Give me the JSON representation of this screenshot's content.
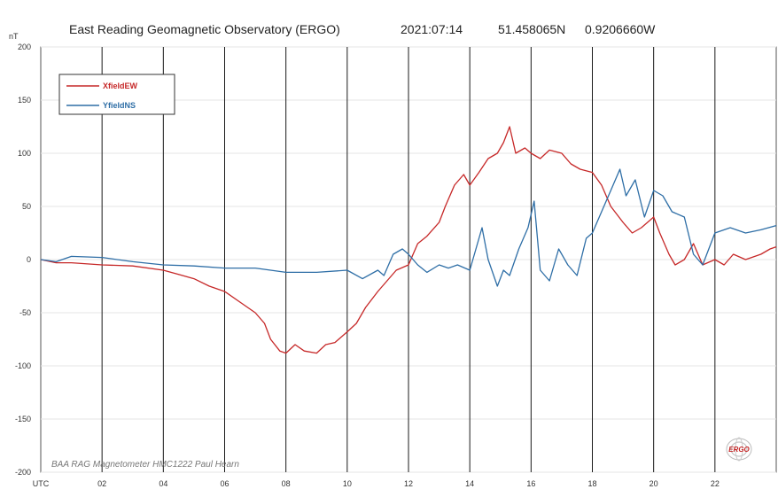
{
  "header": {
    "title": "East Reading Geomagnetic Observatory  (ERGO)",
    "date": "2021:07:14",
    "latitude": "51.458065N",
    "longitude": "0.9206660W"
  },
  "credit": "BAA RAG Magnetometer HMC1222   Paul Hearn",
  "logo_text": "ERGO",
  "colors": {
    "xfield": "#c62828",
    "yfield": "#2e6ea6",
    "grid": "#000000",
    "frame": "#555555"
  },
  "chart_data": {
    "type": "line",
    "ylabel": "nT",
    "xlabel": "",
    "ylim": [
      -200,
      200
    ],
    "xlim": [
      0,
      24
    ],
    "y_ticks": [
      200,
      150,
      100,
      50,
      0,
      -50,
      -100,
      -150,
      -200
    ],
    "x_ticks": [
      {
        "x": 0,
        "label": "UTC"
      },
      {
        "x": 2,
        "label": "02"
      },
      {
        "x": 4,
        "label": "04"
      },
      {
        "x": 6,
        "label": "06"
      },
      {
        "x": 8,
        "label": "08"
      },
      {
        "x": 10,
        "label": "10"
      },
      {
        "x": 12,
        "label": "12"
      },
      {
        "x": 14,
        "label": "14"
      },
      {
        "x": 16,
        "label": "16"
      },
      {
        "x": 18,
        "label": "18"
      },
      {
        "x": 20,
        "label": "20"
      },
      {
        "x": 22,
        "label": "22"
      }
    ],
    "vertical_grid": [
      2,
      4,
      6,
      8,
      10,
      12,
      14,
      16,
      18,
      20,
      22
    ],
    "legend_position": "top-left",
    "series": [
      {
        "name": "XfieldEW",
        "color": "#c62828",
        "points": [
          [
            0,
            0
          ],
          [
            0.5,
            -3
          ],
          [
            1,
            -3
          ],
          [
            2,
            -5
          ],
          [
            3,
            -6
          ],
          [
            4,
            -10
          ],
          [
            4.5,
            -14
          ],
          [
            5,
            -18
          ],
          [
            5.5,
            -25
          ],
          [
            6,
            -30
          ],
          [
            6.5,
            -40
          ],
          [
            7,
            -50
          ],
          [
            7.3,
            -60
          ],
          [
            7.5,
            -75
          ],
          [
            7.8,
            -86
          ],
          [
            8,
            -88
          ],
          [
            8.3,
            -80
          ],
          [
            8.6,
            -86
          ],
          [
            9,
            -88
          ],
          [
            9.3,
            -80
          ],
          [
            9.6,
            -78
          ],
          [
            10,
            -68
          ],
          [
            10.3,
            -60
          ],
          [
            10.6,
            -45
          ],
          [
            11,
            -30
          ],
          [
            11.3,
            -20
          ],
          [
            11.6,
            -10
          ],
          [
            12,
            -5
          ],
          [
            12.3,
            15
          ],
          [
            12.6,
            22
          ],
          [
            13,
            35
          ],
          [
            13.2,
            50
          ],
          [
            13.5,
            70
          ],
          [
            13.8,
            80
          ],
          [
            14,
            70
          ],
          [
            14.3,
            82
          ],
          [
            14.6,
            95
          ],
          [
            14.9,
            100
          ],
          [
            15.1,
            110
          ],
          [
            15.3,
            125
          ],
          [
            15.5,
            100
          ],
          [
            15.8,
            105
          ],
          [
            16,
            100
          ],
          [
            16.3,
            95
          ],
          [
            16.6,
            103
          ],
          [
            17,
            100
          ],
          [
            17.3,
            90
          ],
          [
            17.6,
            85
          ],
          [
            18,
            82
          ],
          [
            18.3,
            70
          ],
          [
            18.6,
            50
          ],
          [
            19,
            35
          ],
          [
            19.3,
            25
          ],
          [
            19.6,
            30
          ],
          [
            20,
            40
          ],
          [
            20.2,
            25
          ],
          [
            20.5,
            5
          ],
          [
            20.7,
            -5
          ],
          [
            21,
            0
          ],
          [
            21.3,
            15
          ],
          [
            21.6,
            -5
          ],
          [
            22,
            0
          ],
          [
            22.3,
            -5
          ],
          [
            22.6,
            5
          ],
          [
            23,
            0
          ],
          [
            23.5,
            5
          ],
          [
            23.8,
            10
          ],
          [
            24,
            12
          ]
        ]
      },
      {
        "name": "YfieldNS",
        "color": "#2e6ea6",
        "points": [
          [
            0,
            0
          ],
          [
            0.5,
            -2
          ],
          [
            1,
            3
          ],
          [
            2,
            2
          ],
          [
            3,
            -2
          ],
          [
            4,
            -5
          ],
          [
            5,
            -6
          ],
          [
            6,
            -8
          ],
          [
            7,
            -8
          ],
          [
            8,
            -12
          ],
          [
            9,
            -12
          ],
          [
            10,
            -10
          ],
          [
            10.5,
            -18
          ],
          [
            11,
            -10
          ],
          [
            11.2,
            -15
          ],
          [
            11.5,
            5
          ],
          [
            11.8,
            10
          ],
          [
            12,
            5
          ],
          [
            12.3,
            -5
          ],
          [
            12.6,
            -12
          ],
          [
            13,
            -5
          ],
          [
            13.3,
            -8
          ],
          [
            13.6,
            -5
          ],
          [
            14,
            -10
          ],
          [
            14.2,
            10
          ],
          [
            14.4,
            30
          ],
          [
            14.6,
            0
          ],
          [
            14.9,
            -25
          ],
          [
            15.1,
            -10
          ],
          [
            15.3,
            -15
          ],
          [
            15.6,
            10
          ],
          [
            15.9,
            30
          ],
          [
            16.1,
            55
          ],
          [
            16.3,
            -10
          ],
          [
            16.6,
            -20
          ],
          [
            16.9,
            10
          ],
          [
            17.2,
            -5
          ],
          [
            17.5,
            -15
          ],
          [
            17.8,
            20
          ],
          [
            18,
            25
          ],
          [
            18.3,
            45
          ],
          [
            18.6,
            65
          ],
          [
            18.9,
            85
          ],
          [
            19.1,
            60
          ],
          [
            19.4,
            75
          ],
          [
            19.7,
            40
          ],
          [
            20,
            65
          ],
          [
            20.3,
            60
          ],
          [
            20.6,
            45
          ],
          [
            21,
            40
          ],
          [
            21.3,
            5
          ],
          [
            21.6,
            -5
          ],
          [
            22,
            25
          ],
          [
            22.5,
            30
          ],
          [
            23,
            25
          ],
          [
            23.5,
            28
          ],
          [
            24,
            32
          ]
        ]
      }
    ]
  }
}
